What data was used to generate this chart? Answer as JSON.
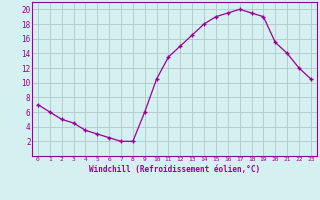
{
  "x": [
    0,
    1,
    2,
    3,
    4,
    5,
    6,
    7,
    8,
    9,
    10,
    11,
    12,
    13,
    14,
    15,
    16,
    17,
    18,
    19,
    20,
    21,
    22,
    23
  ],
  "y": [
    7,
    6,
    5,
    4.5,
    3.5,
    3,
    2.5,
    2,
    2,
    6,
    10.5,
    13.5,
    15,
    16.5,
    18,
    19,
    19.5,
    20,
    19.5,
    19,
    15.5,
    14,
    12,
    10.5
  ],
  "line_color": "#990099",
  "marker": "+",
  "bg_color": "#d5f0f0",
  "grid_color": "#b0c8c8",
  "xlabel": "Windchill (Refroidissement éolien,°C)",
  "xlabel_color": "#990099",
  "tick_color": "#990099",
  "spine_color": "#990099",
  "ylim": [
    0,
    21
  ],
  "xlim": [
    -0.5,
    23.5
  ],
  "yticks": [
    2,
    4,
    6,
    8,
    10,
    12,
    14,
    16,
    18,
    20
  ],
  "xticks": [
    0,
    1,
    2,
    3,
    4,
    5,
    6,
    7,
    8,
    9,
    10,
    11,
    12,
    13,
    14,
    15,
    16,
    17,
    18,
    19,
    20,
    21,
    22,
    23
  ],
  "xtick_labels": [
    "0",
    "1",
    "2",
    "3",
    "4",
    "5",
    "6",
    "7",
    "8",
    "9",
    "10",
    "11",
    "12",
    "13",
    "14",
    "15",
    "16",
    "17",
    "18",
    "19",
    "20",
    "21",
    "22",
    "23"
  ],
  "ytick_labels": [
    "2",
    "4",
    "6",
    "8",
    "10",
    "12",
    "14",
    "16",
    "18",
    "20"
  ]
}
